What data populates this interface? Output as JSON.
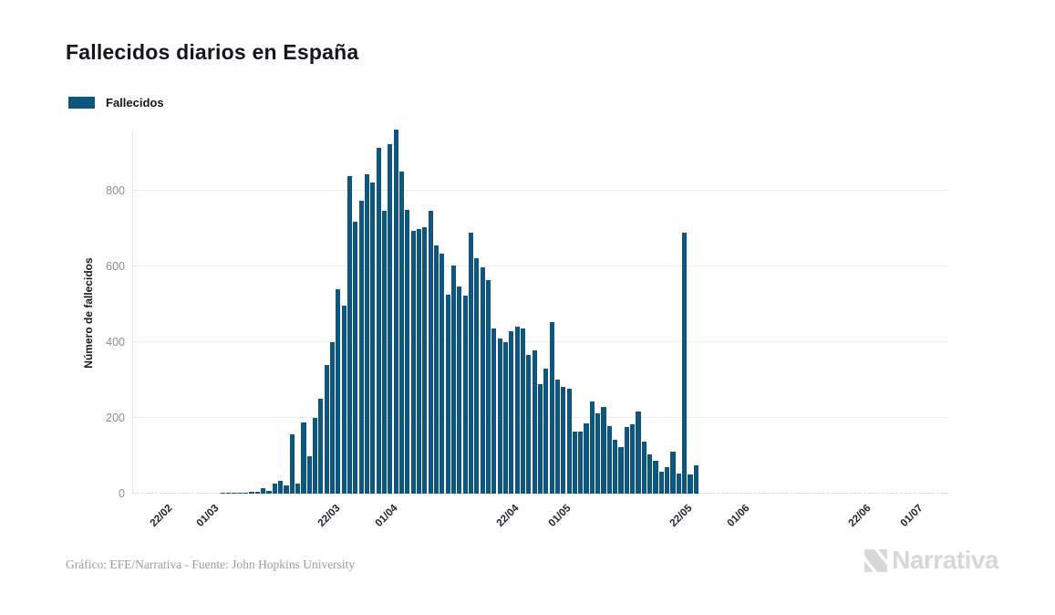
{
  "title": "Fallecidos diarios en España",
  "legend": {
    "label": "Fallecidos",
    "swatch_color": "#0e567d"
  },
  "footer": {
    "caption": "Gráfico: EFE/Narrativa - Fuente: John Hopkins University",
    "logo_text": "Narrativa"
  },
  "colors": {
    "bar": "#0e567d",
    "grid": "#ececec",
    "axis_line": "#e4e4e4",
    "baseline_dash": "#c9dce6",
    "y_tick_text": "#8e8e8e",
    "x_tick_text": "#23232b",
    "title_text": "#15151f",
    "caption_text": "#9c9c9c",
    "logo_gray": "#d7d7d7"
  },
  "chart_data": {
    "type": "bar",
    "title": "Fallecidos diarios en España",
    "xlabel": "",
    "ylabel": "Número de fallecidos",
    "ylim": [
      0,
      950
    ],
    "yticks": [
      0,
      200,
      400,
      600,
      800
    ],
    "xticks": [
      "22/02",
      "01/03",
      "22/03",
      "01/04",
      "22/04",
      "01/05",
      "22/05",
      "01/06",
      "22/06",
      "01/07"
    ],
    "grid": "horizontal",
    "legend_position": "top-left",
    "series": [
      {
        "name": "Fallecidos",
        "points": [
          [
            "22/02",
            0
          ],
          [
            "23/02",
            0
          ],
          [
            "24/02",
            0
          ],
          [
            "25/02",
            0
          ],
          [
            "26/02",
            0
          ],
          [
            "27/02",
            0
          ],
          [
            "28/02",
            0
          ],
          [
            "29/02",
            0
          ],
          [
            "01/03",
            0
          ],
          [
            "02/03",
            0
          ],
          [
            "03/03",
            2
          ],
          [
            "04/03",
            2
          ],
          [
            "05/03",
            3
          ],
          [
            "06/03",
            3
          ],
          [
            "07/03",
            3
          ],
          [
            "08/03",
            4
          ],
          [
            "09/03",
            5
          ],
          [
            "10/03",
            14
          ],
          [
            "11/03",
            8
          ],
          [
            "12/03",
            26
          ],
          [
            "13/03",
            34
          ],
          [
            "14/03",
            22
          ],
          [
            "15/03",
            157
          ],
          [
            "16/03",
            27
          ],
          [
            "17/03",
            187
          ],
          [
            "18/03",
            99
          ],
          [
            "19/03",
            200
          ],
          [
            "20/03",
            250
          ],
          [
            "21/03",
            340
          ],
          [
            "22/03",
            400
          ],
          [
            "23/03",
            539
          ],
          [
            "24/03",
            497
          ],
          [
            "25/03",
            839
          ],
          [
            "26/03",
            718
          ],
          [
            "27/03",
            773
          ],
          [
            "28/03",
            844
          ],
          [
            "29/03",
            821
          ],
          [
            "30/03",
            913
          ],
          [
            "31/03",
            748
          ],
          [
            "01/04",
            923
          ],
          [
            "02/04",
            961
          ],
          [
            "03/04",
            850
          ],
          [
            "04/04",
            749
          ],
          [
            "05/04",
            694
          ],
          [
            "06/04",
            700
          ],
          [
            "07/04",
            704
          ],
          [
            "08/04",
            747
          ],
          [
            "09/04",
            655
          ],
          [
            "10/04",
            634
          ],
          [
            "11/04",
            525
          ],
          [
            "12/04",
            603
          ],
          [
            "13/04",
            547
          ],
          [
            "14/04",
            522
          ],
          [
            "15/04",
            689
          ],
          [
            "16/04",
            621
          ],
          [
            "17/04",
            597
          ],
          [
            "18/04",
            564
          ],
          [
            "19/04",
            435
          ],
          [
            "20/04",
            410
          ],
          [
            "21/04",
            399
          ],
          [
            "22/04",
            430
          ],
          [
            "23/04",
            440
          ],
          [
            "24/04",
            435
          ],
          [
            "25/04",
            367
          ],
          [
            "26/04",
            378
          ],
          [
            "27/04",
            288
          ],
          [
            "28/04",
            331
          ],
          [
            "29/04",
            453
          ],
          [
            "30/04",
            301
          ],
          [
            "01/05",
            281
          ],
          [
            "02/05",
            276
          ],
          [
            "03/05",
            164
          ],
          [
            "04/05",
            164
          ],
          [
            "05/05",
            185
          ],
          [
            "06/05",
            244
          ],
          [
            "07/05",
            213
          ],
          [
            "08/05",
            229
          ],
          [
            "09/05",
            179
          ],
          [
            "10/05",
            143
          ],
          [
            "11/05",
            123
          ],
          [
            "12/05",
            176
          ],
          [
            "13/05",
            184
          ],
          [
            "14/05",
            217
          ],
          [
            "15/05",
            138
          ],
          [
            "16/05",
            104
          ],
          [
            "17/05",
            87
          ],
          [
            "18/05",
            59
          ],
          [
            "19/05",
            69
          ],
          [
            "20/05",
            110
          ],
          [
            "21/05",
            52
          ],
          [
            "22/05",
            688
          ],
          [
            "23/05",
            50
          ],
          [
            "24/05",
            74
          ]
        ]
      }
    ]
  }
}
